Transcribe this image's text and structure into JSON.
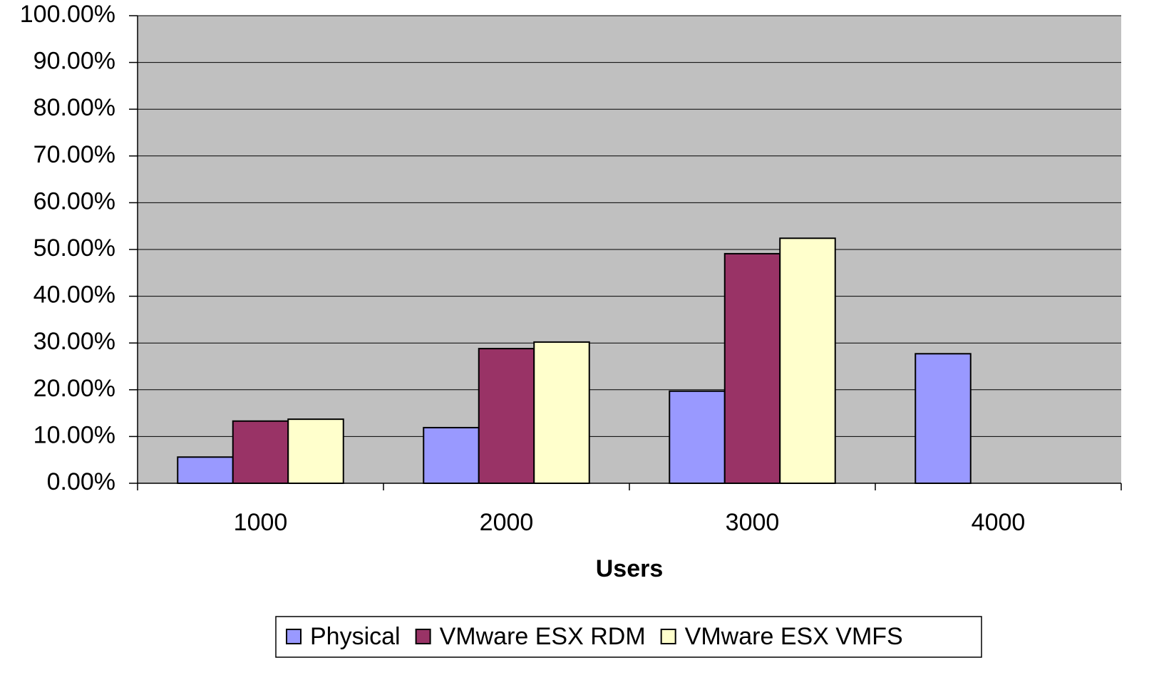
{
  "chart_data": {
    "type": "bar",
    "x_label": "Users",
    "categories": [
      "1000",
      "2000",
      "3000",
      "4000"
    ],
    "series": [
      {
        "name": "Physical",
        "color": "#9999ff",
        "values": [
          5.6,
          11.9,
          19.7,
          27.7
        ]
      },
      {
        "name": "VMware ESX RDM",
        "color": "#993366",
        "values": [
          13.3,
          28.8,
          49.1,
          null
        ]
      },
      {
        "name": "VMware ESX VMFS",
        "color": "#ffffcc",
        "values": [
          13.7,
          30.2,
          52.4,
          null
        ]
      }
    ],
    "ylim": [
      0,
      100
    ],
    "yticks": [
      {
        "value": 0,
        "label": "0.00%"
      },
      {
        "value": 10,
        "label": "10.00%"
      },
      {
        "value": 20,
        "label": "20.00%"
      },
      {
        "value": 30,
        "label": "30.00%"
      },
      {
        "value": 40,
        "label": "40.00%"
      },
      {
        "value": 50,
        "label": "50.00%"
      },
      {
        "value": 60,
        "label": "60.00%"
      },
      {
        "value": 70,
        "label": "70.00%"
      },
      {
        "value": 80,
        "label": "80.00%"
      },
      {
        "value": 90,
        "label": "90.00%"
      },
      {
        "value": 100,
        "label": "100.00%"
      }
    ],
    "grid": true,
    "legend": "bottom"
  }
}
